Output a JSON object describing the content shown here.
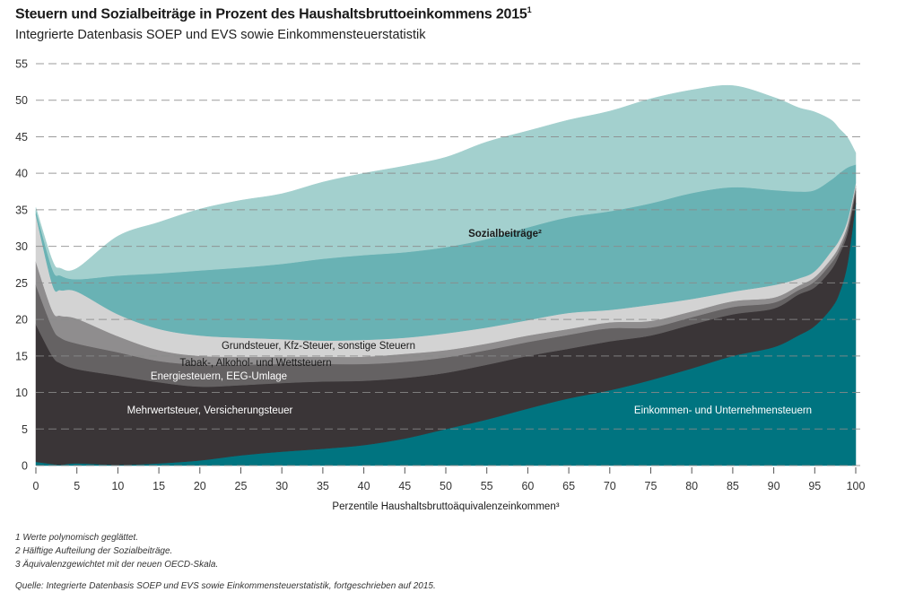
{
  "title": "Steuern und Sozialbeiträge in Prozent des Haushaltsbruttoeinkommens 2015",
  "title_sup": "1",
  "subtitle": "Integrierte Datenbasis SOEP und EVS sowie Einkommensteuerstatistik",
  "footnotes": [
    "1  Werte polynomisch geglättet.",
    "2  Hälftige Aufteilung der Sozialbeiträge.",
    "3  Äquivalenzgewichtet mit der neuen OECD-Skala."
  ],
  "source": "Quelle: Integrierte Datenbasis SOEP und EVS sowie Einkommensteuerstatistik, fortgeschrieben auf 2015.",
  "chart_data": {
    "type": "area",
    "stacked": true,
    "title": "Steuern und Sozialbeiträge in Prozent des Haushaltsbruttoeinkommens 2015",
    "xlabel": "Perzentile Haushaltsbruttoäquivalenzeinkommen³",
    "ylabel": "",
    "xlim": [
      0,
      100
    ],
    "ylim": [
      0,
      55
    ],
    "xticks": [
      0,
      5,
      10,
      15,
      20,
      25,
      30,
      35,
      40,
      45,
      50,
      55,
      60,
      65,
      70,
      75,
      80,
      85,
      90,
      95,
      100
    ],
    "yticks": [
      0,
      5,
      10,
      15,
      20,
      25,
      30,
      35,
      40,
      45,
      50,
      55
    ],
    "grid": "horizontal dashed",
    "x": [
      0,
      2,
      3,
      5,
      10,
      15,
      20,
      25,
      30,
      35,
      40,
      45,
      50,
      55,
      60,
      65,
      70,
      75,
      80,
      85,
      90,
      93,
      95,
      97,
      98,
      99,
      100
    ],
    "series": [
      {
        "name": "Einkommen- und Unternehmensteuern",
        "color": "#007480",
        "values": [
          0.5,
          0.2,
          0.1,
          0.3,
          0.1,
          0.3,
          0.7,
          1.4,
          1.9,
          2.3,
          2.8,
          3.7,
          5.0,
          6.3,
          7.8,
          9.2,
          10.3,
          11.7,
          13.3,
          15.0,
          16.2,
          17.8,
          19.1,
          21.5,
          23.6,
          27.7,
          35.9
        ]
      },
      {
        "name": "Mehrwertsteuer, Versicherungsteuer",
        "color": "#3a3537",
        "values": [
          18.8,
          14.8,
          13.9,
          12.9,
          12.2,
          11.1,
          10.1,
          9.6,
          9.4,
          9.2,
          8.8,
          8.3,
          7.7,
          7.5,
          7.2,
          6.8,
          6.7,
          6.1,
          6.0,
          5.7,
          5.3,
          5.6,
          5.3,
          5.3,
          5.3,
          4.1,
          1.6
        ]
      },
      {
        "name": "Energiesteuern, EEG-Umlage",
        "color": "#656263",
        "values": [
          5.4,
          3.9,
          3.5,
          3.5,
          3.2,
          2.9,
          3.0,
          2.8,
          2.6,
          2.4,
          2.3,
          2.2,
          2.1,
          2.0,
          1.9,
          1.9,
          1.8,
          1.1,
          1.0,
          1.0,
          0.8,
          0.6,
          0.8,
          0.9,
          0.6,
          0.6,
          0.4
        ]
      },
      {
        "name": "Tabak-, Alkohol- und Wettsteuern",
        "color": "#8f8d8e",
        "values": [
          3.2,
          2.3,
          3.0,
          3.4,
          2.2,
          1.5,
          1.2,
          1.1,
          1.0,
          1.0,
          1.0,
          1.1,
          1.0,
          0.9,
          0.9,
          0.8,
          0.8,
          0.9,
          0.8,
          0.8,
          0.7,
          0.6,
          0.6,
          0.6,
          0.6,
          0.6,
          0.4
        ]
      },
      {
        "name": "Grundsteuer, Kfz-Steuer, sonstige Steuern",
        "color": "#d3d3d3",
        "values": [
          6.4,
          3.6,
          3.5,
          3.7,
          3.0,
          2.9,
          2.8,
          2.6,
          2.4,
          2.2,
          2.3,
          2.2,
          2.3,
          2.2,
          2.1,
          2.2,
          1.7,
          2.2,
          1.7,
          1.3,
          1.7,
          1.0,
          0.8,
          1.0,
          0.8,
          0.6,
          0.4
        ]
      },
      {
        "name": "Sozialbeiträge²",
        "color": "#69b2b4",
        "values": [
          0.6,
          2.1,
          2.0,
          1.7,
          5.3,
          7.6,
          8.9,
          9.6,
          10.3,
          11.2,
          11.6,
          11.7,
          11.8,
          12.1,
          12.7,
          13.1,
          13.5,
          13.9,
          14.5,
          14.3,
          13.0,
          11.9,
          11.1,
          9.8,
          9.1,
          7.2,
          2.5
        ]
      },
      {
        "color": "#a3d0ce",
        "values": [
          0.4,
          1.2,
          1.0,
          1.5,
          5.4,
          7.0,
          8.4,
          9.2,
          9.6,
          10.5,
          11.2,
          11.8,
          12.3,
          13.3,
          13.2,
          13.3,
          13.7,
          14.3,
          14.1,
          13.9,
          12.7,
          11.5,
          10.7,
          8.2,
          6.1,
          4.1,
          1.6
        ]
      }
    ],
    "annotations": [
      {
        "text": "Sozialbeiträge²",
        "color": "#1a1a1a",
        "bold": true
      },
      {
        "text": "Grundsteuer, Kfz-Steuer, sonstige Steuern",
        "color": "#1a1a1a"
      },
      {
        "text": "Tabak-, Alkohol- und Wettsteuern",
        "color": "#1a1a1a"
      },
      {
        "text": "Energiesteuern, EEG-Umlage",
        "color": "#ffffff"
      },
      {
        "text": "Mehrwertsteuer, Versicherungsteuer",
        "color": "#ffffff"
      },
      {
        "text": "Einkommen- und Unternehmensteuern",
        "color": "#ffffff"
      }
    ]
  }
}
